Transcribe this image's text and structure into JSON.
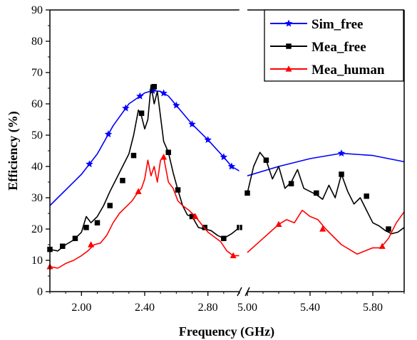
{
  "chart_data": {
    "type": "line",
    "title": "",
    "xlabel": "Frequency (GHz)",
    "ylabel": "Efficiency (%)",
    "ylim": [
      0,
      90
    ],
    "yticks": [
      "0",
      "10",
      "20",
      "30",
      "40",
      "50",
      "60",
      "70",
      "80",
      "90"
    ],
    "yticks_values": [
      0,
      10,
      20,
      30,
      40,
      50,
      60,
      70,
      80,
      90
    ],
    "x_break": true,
    "segments": [
      {
        "xlim": [
          1.8,
          3.0
        ],
        "ticks": [
          {
            "value": 2.0,
            "label": "2.00"
          },
          {
            "value": 2.4,
            "label": "2.40"
          },
          {
            "value": 2.8,
            "label": "2.80"
          }
        ]
      },
      {
        "xlim": [
          5.0,
          6.0
        ],
        "ticks": [
          {
            "value": 5.0,
            "label": "5.00"
          },
          {
            "value": 5.4,
            "label": "5.40"
          },
          {
            "value": 5.8,
            "label": "5.80"
          }
        ]
      }
    ],
    "legend_position": "top-right",
    "series": [
      {
        "name": "Sim_free",
        "color": "#0000ff",
        "marker": "star",
        "segment1": {
          "x": [
            1.8,
            2.0,
            2.1,
            2.2,
            2.3,
            2.4,
            2.45,
            2.5,
            2.55,
            2.6,
            2.7,
            2.8,
            2.9,
            2.95,
            3.0
          ],
          "y": [
            27.5,
            37.5,
            44.0,
            53.0,
            60.0,
            63.5,
            64.2,
            64.0,
            62.5,
            59.5,
            53.5,
            48.5,
            43.0,
            40.0,
            38.5
          ]
        },
        "segment2": {
          "x": [
            5.0,
            5.2,
            5.4,
            5.6,
            5.8,
            5.9,
            6.0
          ],
          "y": [
            37.0,
            40.0,
            42.5,
            44.2,
            43.5,
            42.5,
            41.5
          ]
        },
        "markers1_x": [
          2.05,
          2.17,
          2.28,
          2.37,
          2.45,
          2.52,
          2.6,
          2.7,
          2.8,
          2.9,
          2.95
        ],
        "markers2_x": [
          5.6
        ]
      },
      {
        "name": "Mea_free",
        "color": "#000000",
        "marker": "square",
        "segment1": {
          "x": [
            1.8,
            1.85,
            1.9,
            1.95,
            2.0,
            2.03,
            2.06,
            2.1,
            2.14,
            2.18,
            2.22,
            2.26,
            2.3,
            2.33,
            2.36,
            2.38,
            2.4,
            2.42,
            2.44,
            2.46,
            2.48,
            2.5,
            2.52,
            2.55,
            2.58,
            2.61,
            2.64,
            2.67,
            2.7,
            2.74,
            2.78,
            2.82,
            2.86,
            2.9,
            2.95,
            3.0
          ],
          "y": [
            13.5,
            13.0,
            15.0,
            16.5,
            19.0,
            24.0,
            22.0,
            24.0,
            27.5,
            32.0,
            36.0,
            40.0,
            44.0,
            50.0,
            58.0,
            56.0,
            52.0,
            55.0,
            66.0,
            60.0,
            64.0,
            56.0,
            48.0,
            44.5,
            38.0,
            32.5,
            27.5,
            24.5,
            24.0,
            20.5,
            20.0,
            19.5,
            18.0,
            17.0,
            18.5,
            20.5
          ]
        },
        "segment2": {
          "x": [
            5.0,
            5.04,
            5.08,
            5.12,
            5.16,
            5.2,
            5.24,
            5.28,
            5.32,
            5.36,
            5.4,
            5.44,
            5.48,
            5.52,
            5.56,
            5.6,
            5.64,
            5.68,
            5.72,
            5.76,
            5.8,
            5.84,
            5.88,
            5.92,
            5.96,
            6.0
          ],
          "y": [
            31.5,
            40.0,
            44.5,
            42.0,
            36.0,
            40.0,
            33.0,
            35.0,
            39.0,
            33.0,
            32.0,
            31.0,
            29.5,
            34.0,
            30.0,
            37.5,
            32.0,
            28.0,
            30.0,
            26.0,
            22.0,
            21.0,
            19.5,
            18.5,
            19.0,
            20.5
          ]
        },
        "markers1_x": [
          1.8,
          1.88,
          1.96,
          2.03,
          2.1,
          2.18,
          2.26,
          2.33,
          2.38,
          2.46,
          2.55,
          2.61,
          2.7,
          2.78,
          2.9,
          3.0
        ],
        "markers1_y": [
          13.5,
          14.5,
          17.0,
          20.5,
          22.0,
          27.5,
          35.5,
          43.5,
          57.0,
          65.5,
          44.5,
          32.5,
          24.0,
          20.5,
          17.0,
          20.5
        ],
        "markers2_x": [
          5.0,
          5.12,
          5.28,
          5.44,
          5.6,
          5.76,
          5.9
        ],
        "markers2_y": [
          31.5,
          42.0,
          34.5,
          31.5,
          37.5,
          30.5,
          20.0
        ]
      },
      {
        "name": "Mea_human",
        "color": "#ff0000",
        "marker": "triangle",
        "segment1": {
          "x": [
            1.8,
            1.85,
            1.9,
            1.95,
            2.0,
            2.04,
            2.08,
            2.12,
            2.16,
            2.2,
            2.24,
            2.28,
            2.32,
            2.36,
            2.38,
            2.4,
            2.42,
            2.44,
            2.46,
            2.48,
            2.5,
            2.52,
            2.55,
            2.58,
            2.61,
            2.64,
            2.68,
            2.72,
            2.76,
            2.8,
            2.84,
            2.88,
            2.92,
            2.96,
            3.0
          ],
          "y": [
            8.0,
            7.5,
            9.0,
            10.0,
            11.5,
            13.0,
            15.0,
            15.5,
            18.0,
            22.0,
            25.0,
            27.0,
            29.0,
            32.0,
            33.0,
            36.0,
            42.0,
            37.0,
            40.0,
            35.0,
            42.0,
            43.0,
            35.0,
            33.0,
            29.0,
            27.5,
            26.0,
            24.0,
            21.5,
            19.0,
            17.5,
            16.0,
            13.0,
            11.5,
            11.5
          ]
        },
        "segment2": {
          "x": [
            5.0,
            5.1,
            5.2,
            5.25,
            5.3,
            5.35,
            5.4,
            5.45,
            5.5,
            5.55,
            5.6,
            5.65,
            5.7,
            5.75,
            5.8,
            5.85,
            5.9,
            5.95,
            6.0
          ],
          "y": [
            12.5,
            17.0,
            21.5,
            23.0,
            22.0,
            26.0,
            24.0,
            23.0,
            20.0,
            17.5,
            15.0,
            13.5,
            12.0,
            13.0,
            14.0,
            14.0,
            17.0,
            22.0,
            25.5
          ]
        },
        "markers1_x": [
          1.8,
          2.06,
          2.36,
          2.52,
          2.72,
          2.96
        ],
        "markers1_y": [
          8.0,
          15.0,
          32.0,
          43.0,
          24.0,
          11.5
        ],
        "markers2_x": [
          5.2,
          5.48,
          5.86
        ],
        "markers2_y": [
          21.5,
          20.0,
          14.5
        ]
      }
    ]
  }
}
